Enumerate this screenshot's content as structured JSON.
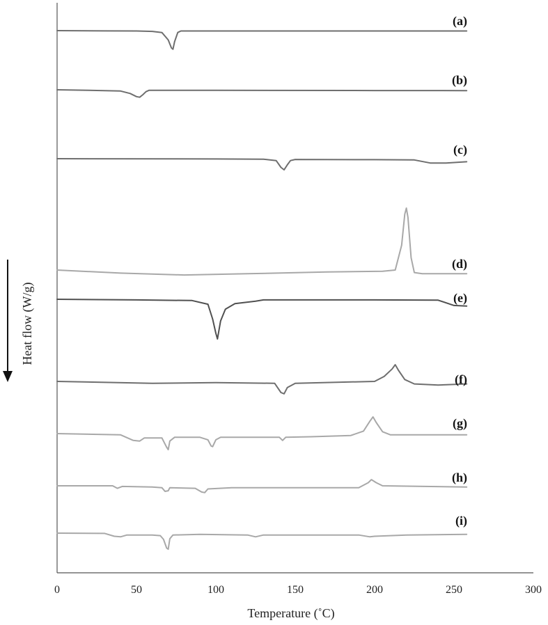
{
  "chart_data": {
    "type": "line",
    "title": "",
    "xlabel": "Temperature (˚C)",
    "ylabel": "Heat flow (W/g)",
    "xlim": [
      0,
      300
    ],
    "x_ticks": [
      0,
      50,
      100,
      150,
      200,
      250,
      300
    ],
    "y_ticks": [],
    "grid": false,
    "legend": "none",
    "ylabel_arrow": "down",
    "colors": {
      "dark": "#6e6e6e",
      "darker": "#505050",
      "light": "#a8a8a8",
      "axis": "#555555",
      "text": "#111111"
    },
    "series": [
      {
        "name": "(a)",
        "color": "#6e6e6e",
        "points": [
          [
            0,
            0
          ],
          [
            30,
            -0.4
          ],
          [
            50,
            -0.6
          ],
          [
            60,
            -1.2
          ],
          [
            66,
            -3
          ],
          [
            70,
            -15
          ],
          [
            72,
            -28
          ],
          [
            73,
            -30
          ],
          [
            74,
            -18
          ],
          [
            76,
            -3
          ],
          [
            78,
            -0.6
          ],
          [
            100,
            -0.6
          ],
          [
            200,
            -0.6
          ],
          [
            258,
            -0.6
          ]
        ]
      },
      {
        "name": "(b)",
        "color": "#6e6e6e",
        "points": [
          [
            0,
            0
          ],
          [
            20,
            -0.8
          ],
          [
            40,
            -2
          ],
          [
            46,
            -6
          ],
          [
            50,
            -11
          ],
          [
            52,
            -12
          ],
          [
            54,
            -8
          ],
          [
            56,
            -3
          ],
          [
            58,
            -0.8
          ],
          [
            100,
            -0.8
          ],
          [
            200,
            -1.2
          ],
          [
            258,
            -1.4
          ]
        ]
      },
      {
        "name": "(c)",
        "color": "#6e6e6e",
        "points": [
          [
            0,
            0
          ],
          [
            100,
            -0.4
          ],
          [
            130,
            -0.8
          ],
          [
            138,
            -3
          ],
          [
            141,
            -14
          ],
          [
            143,
            -18
          ],
          [
            145,
            -10
          ],
          [
            147,
            -3
          ],
          [
            150,
            -1.2
          ],
          [
            200,
            -1.6
          ],
          [
            225,
            -2
          ],
          [
            235,
            -7
          ],
          [
            245,
            -7
          ],
          [
            258,
            -5
          ]
        ]
      },
      {
        "name": "(d)",
        "color": "#a8a8a8",
        "points": [
          [
            0,
            0
          ],
          [
            40,
            -5
          ],
          [
            80,
            -8
          ],
          [
            120,
            -6
          ],
          [
            170,
            -3
          ],
          [
            205,
            -2
          ],
          [
            213,
            0
          ],
          [
            217,
            40
          ],
          [
            219,
            90
          ],
          [
            220,
            100
          ],
          [
            221,
            85
          ],
          [
            223,
            20
          ],
          [
            225,
            -4
          ],
          [
            230,
            -6
          ],
          [
            258,
            -6
          ]
        ]
      },
      {
        "name": "(e)",
        "color": "#505050",
        "points": [
          [
            0,
            0
          ],
          [
            50,
            -1
          ],
          [
            85,
            -2
          ],
          [
            95,
            -8
          ],
          [
            98,
            -32
          ],
          [
            100,
            -55
          ],
          [
            101,
            -64
          ],
          [
            103,
            -35
          ],
          [
            106,
            -16
          ],
          [
            112,
            -7
          ],
          [
            125,
            -3
          ],
          [
            130,
            -1
          ],
          [
            150,
            -1
          ],
          [
            200,
            -1
          ],
          [
            240,
            -1.5
          ],
          [
            250,
            -10
          ],
          [
            258,
            -11
          ]
        ]
      },
      {
        "name": "(f)",
        "color": "#6e6e6e",
        "points": [
          [
            0,
            0
          ],
          [
            60,
            -3
          ],
          [
            100,
            -2
          ],
          [
            137,
            -3
          ],
          [
            141,
            -18
          ],
          [
            143,
            -20
          ],
          [
            145,
            -10
          ],
          [
            150,
            -3
          ],
          [
            200,
            0
          ],
          [
            206,
            8
          ],
          [
            211,
            20
          ],
          [
            213,
            27
          ],
          [
            215,
            18
          ],
          [
            219,
            3
          ],
          [
            225,
            -4
          ],
          [
            240,
            -6
          ],
          [
            258,
            -4
          ]
        ]
      },
      {
        "name": "(g)",
        "color": "#a8a8a8",
        "points": [
          [
            0,
            0
          ],
          [
            40,
            -2
          ],
          [
            48,
            -11
          ],
          [
            52,
            -12
          ],
          [
            55,
            -7
          ],
          [
            62,
            -7
          ],
          [
            66,
            -7
          ],
          [
            69,
            -22
          ],
          [
            70,
            -26
          ],
          [
            71,
            -12
          ],
          [
            74,
            -6
          ],
          [
            90,
            -6
          ],
          [
            95,
            -10
          ],
          [
            97,
            -20
          ],
          [
            98,
            -21
          ],
          [
            100,
            -10
          ],
          [
            103,
            -6
          ],
          [
            140,
            -6
          ],
          [
            142,
            -11
          ],
          [
            144,
            -6
          ],
          [
            160,
            -5
          ],
          [
            185,
            -3
          ],
          [
            193,
            4
          ],
          [
            197,
            20
          ],
          [
            199,
            27
          ],
          [
            201,
            18
          ],
          [
            205,
            3
          ],
          [
            210,
            -2
          ],
          [
            258,
            -2
          ]
        ]
      },
      {
        "name": "(h)",
        "color": "#a8a8a8",
        "points": [
          [
            0,
            0
          ],
          [
            35,
            0
          ],
          [
            38,
            -4
          ],
          [
            41,
            -1
          ],
          [
            60,
            -2
          ],
          [
            66,
            -3
          ],
          [
            68,
            -9
          ],
          [
            70,
            -8
          ],
          [
            71,
            -3
          ],
          [
            87,
            -4
          ],
          [
            91,
            -10
          ],
          [
            93,
            -11
          ],
          [
            95,
            -5
          ],
          [
            110,
            -3
          ],
          [
            150,
            -3
          ],
          [
            190,
            -3
          ],
          [
            196,
            5
          ],
          [
            198,
            10
          ],
          [
            201,
            5
          ],
          [
            205,
            0
          ],
          [
            258,
            -2
          ]
        ]
      },
      {
        "name": "(i)",
        "color": "#a8a8a8",
        "points": [
          [
            0,
            0
          ],
          [
            30,
            -0.5
          ],
          [
            36,
            -5
          ],
          [
            40,
            -6
          ],
          [
            44,
            -3
          ],
          [
            60,
            -3
          ],
          [
            65,
            -4
          ],
          [
            67,
            -10
          ],
          [
            69,
            -24
          ],
          [
            70,
            -26
          ],
          [
            71,
            -9
          ],
          [
            73,
            -3
          ],
          [
            90,
            -2
          ],
          [
            120,
            -3
          ],
          [
            125,
            -6
          ],
          [
            130,
            -3
          ],
          [
            160,
            -3
          ],
          [
            190,
            -3
          ],
          [
            197,
            -6
          ],
          [
            200,
            -5
          ],
          [
            220,
            -3
          ],
          [
            258,
            -2
          ]
        ]
      }
    ]
  }
}
